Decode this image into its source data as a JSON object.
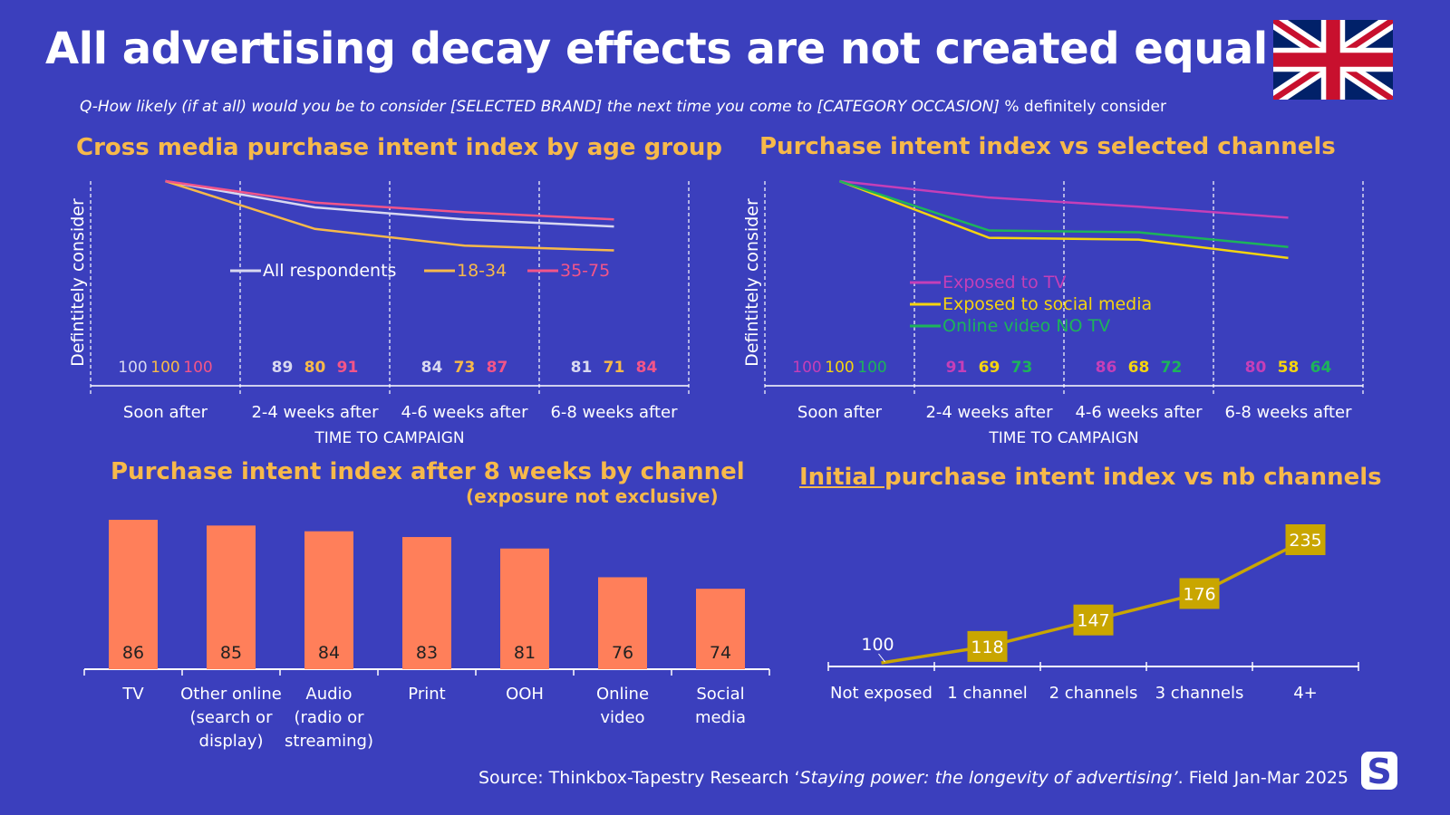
{
  "title": "All advertising decay effects are not created equal",
  "subtitle_prefix": "Q-How likely (if at all) would you be to consider [SELECTED BRAND] the next time you come to [CATEGORY OCCASION]",
  "subtitle_suffix": " % definitely consider",
  "source_prefix": "Source: Thinkbox-Tapestry Research ‘",
  "source_italic": "Staying power: the longevity of advertising’",
  "source_suffix": ". Field Jan-Mar 2025",
  "flag_icon": "uk-flag-icon",
  "logo_letter": "S",
  "colors": {
    "background": "#3b3fbd",
    "accent": "#f7b94a",
    "bar": "#ff7f5a",
    "line4": "#c9a600"
  },
  "chart_data": [
    {
      "id": "age",
      "type": "line",
      "title": "Cross media purchase intent index by age group",
      "ylabel": "Defintitely consider",
      "xlabel": "TIME TO CAMPAIGN",
      "categories": [
        "Soon after",
        "2-4 weeks after",
        "4-6 weeks after",
        "6-8 weeks after"
      ],
      "ylim": [
        0,
        100
      ],
      "series": [
        {
          "name": "All respondents",
          "color": "#d8d8f0",
          "values": [
            100,
            89,
            84,
            81
          ]
        },
        {
          "name": "18-34",
          "color": "#f7b94a",
          "values": [
            100,
            80,
            73,
            71
          ]
        },
        {
          "name": "35-75",
          "color": "#f25589",
          "values": [
            100,
            91,
            87,
            84
          ]
        }
      ]
    },
    {
      "id": "channels",
      "type": "line",
      "title": "Purchase intent index  vs  selected channels",
      "ylabel": "Defintitely consider",
      "xlabel": "TIME TO CAMPAIGN",
      "categories": [
        "Soon after",
        "2-4 weeks after",
        "4-6 weeks after",
        "6-8 weeks after"
      ],
      "ylim": [
        0,
        100
      ],
      "series": [
        {
          "name": "Exposed to TV",
          "color": "#c53fb8",
          "values": [
            100,
            91,
            86,
            80
          ]
        },
        {
          "name": "Exposed to social media",
          "color": "#f5d40f",
          "values": [
            100,
            69,
            68,
            58
          ]
        },
        {
          "name": "Online video NO TV",
          "color": "#1db45a",
          "values": [
            100,
            73,
            72,
            64
          ]
        }
      ]
    },
    {
      "id": "bars",
      "type": "bar",
      "title": "Purchase intent index  after 8 weeks by channel",
      "subtitle": "(exposure not exclusive)",
      "categories": [
        "TV",
        "Other online (search or display)",
        "Audio (radio or streaming)",
        "Print",
        "OOH",
        "Online video",
        "Social media"
      ],
      "category_lines": [
        [
          "TV"
        ],
        [
          "Other online",
          "(search or",
          "display)"
        ],
        [
          "Audio",
          "(radio or",
          "streaming)"
        ],
        [
          "Print"
        ],
        [
          "OOH"
        ],
        [
          "Online",
          "video"
        ],
        [
          "Social",
          "media"
        ]
      ],
      "values": [
        86,
        85,
        84,
        83,
        81,
        76,
        74
      ],
      "ylim": [
        0,
        100
      ]
    },
    {
      "id": "nb",
      "type": "line",
      "title_underlined": "Initial ",
      "title": "purchase intent index vs nb channels",
      "categories": [
        "Not exposed",
        "1 channel",
        "2 channels",
        "3 channels",
        "4+"
      ],
      "values": [
        100,
        118,
        147,
        176,
        235
      ],
      "ylim": [
        100,
        235
      ]
    }
  ]
}
